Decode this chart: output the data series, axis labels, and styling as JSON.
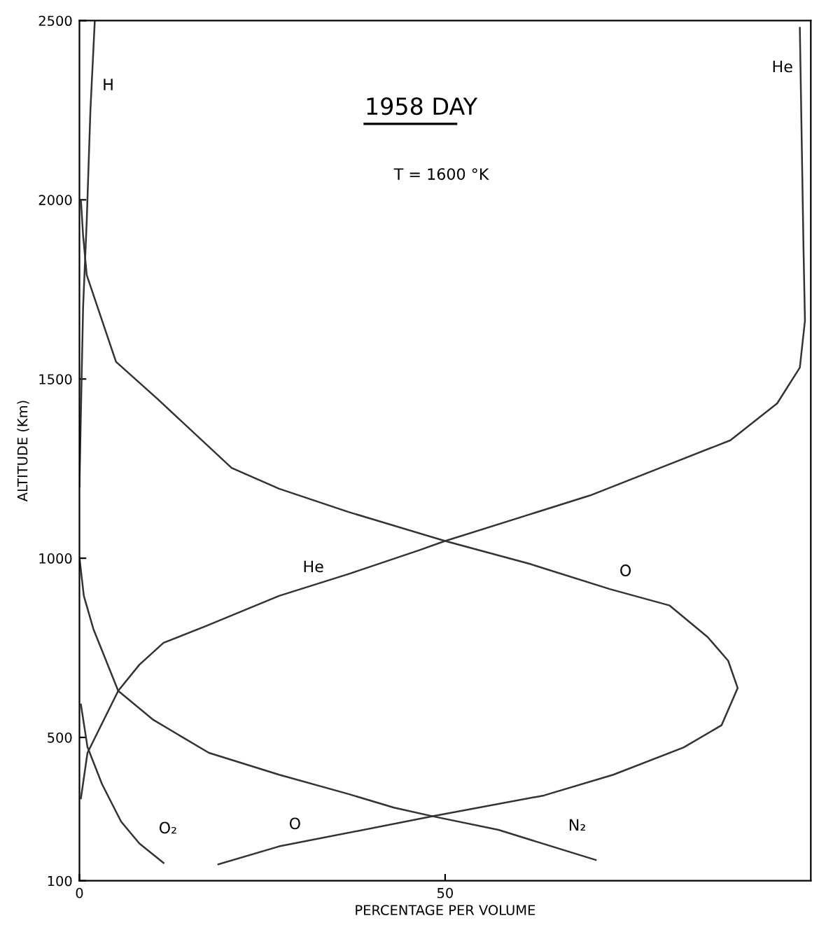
{
  "chart_data": {
    "type": "line",
    "title": "1958 DAY",
    "subtitle": "T = 1600 °K",
    "xlabel": "PERCENTAGE PER VOLUME",
    "ylabel": "ALTITUDE (Km)",
    "xlim": [
      0,
      100
    ],
    "xticks": [
      0,
      50
    ],
    "ylim": [
      100,
      2500
    ],
    "yticks": [
      100,
      500,
      1000,
      1500,
      2000,
      2500
    ],
    "grid": false,
    "legend": false,
    "marker": "none",
    "line_style": "solid",
    "series": [
      {
        "color": "#333333",
        "x": [
          19,
          27.3,
          48.3,
          63.5,
          73,
          82.6,
          87.8,
          90,
          88.7,
          85.9,
          80.7,
          72.5,
          61.6,
          50,
          36.8,
          27.3,
          20.8,
          10.7,
          5,
          1,
          0.5,
          0.2
        ],
        "values": [
          146,
          196,
          280,
          338,
          396,
          472,
          534,
          638,
          714,
          780,
          868,
          914,
          984,
          1048,
          1129,
          1194,
          1252,
          1444,
          1548,
          1790,
          1900,
          2000
        ]
      },
      {
        "color": "#333333",
        "x": [
          0.2,
          1.1,
          5.3,
          8.2,
          11.5,
          17.2,
          27.3,
          36.8,
          46.4,
          50,
          69.8,
          79.4,
          89,
          95.4,
          98.5,
          99.2,
          99,
          98.5
        ],
        "values": [
          330,
          457,
          630,
          703,
          764,
          810,
          895,
          956,
          1022,
          1048,
          1175,
          1252,
          1329,
          1432,
          1532,
          1663,
          1866,
          2480
        ]
      },
      {
        "color": "#333333",
        "x": [
          0,
          0.6,
          1.9,
          5.3,
          10.1,
          17.7,
          27.3,
          36.8,
          43,
          48.3,
          57.3,
          70.6
        ],
        "values": [
          1002,
          895,
          803,
          630,
          549,
          457,
          396,
          342,
          304,
          280,
          242,
          158
        ]
      },
      {
        "color": "#333333",
        "x": [
          0.2,
          1.1,
          3.1,
          5.7,
          8.2,
          11.5
        ],
        "values": [
          592,
          473,
          369,
          265,
          204,
          150
        ]
      },
      {
        "color": "#333333",
        "x": [
          0,
          0.2,
          0.5,
          1,
          1.5,
          2.1
        ],
        "values": [
          1200,
          1406,
          1700,
          1943,
          2250,
          2500
        ]
      }
    ],
    "annotations": [
      {
        "text": "H",
        "x": 1.8,
        "y": 2270
      },
      {
        "text": "He",
        "x": 98.9,
        "y": 2320
      },
      {
        "text": "He",
        "x": 29.2,
        "y": 925
      },
      {
        "text": "O",
        "x": 72.5,
        "y": 914
      },
      {
        "text": "O₂",
        "x": 9.5,
        "y": 196
      },
      {
        "text": "O",
        "x": 27.3,
        "y": 208
      },
      {
        "text": "N₂",
        "x": 65.5,
        "y": 204
      }
    ]
  }
}
